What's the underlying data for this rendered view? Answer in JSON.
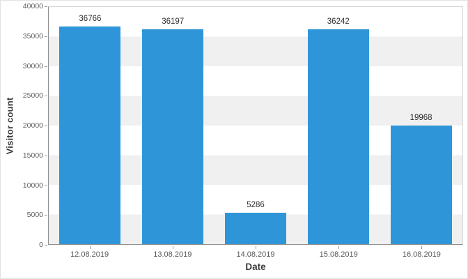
{
  "chart_data": {
    "type": "bar",
    "categories": [
      "12.08.2019",
      "13.08.2019",
      "14.08.2019",
      "15.08.2019",
      "16.08.2019"
    ],
    "values": [
      36766,
      36197,
      5286,
      36242,
      19968
    ],
    "title": "",
    "xlabel": "Date",
    "ylabel": "Visitor count",
    "ylim": [
      0,
      40000
    ],
    "yticks": [
      0,
      5000,
      10000,
      15000,
      20000,
      25000,
      30000,
      35000,
      40000
    ],
    "bar_color": "#2e96d8",
    "grid": true,
    "legend": "none",
    "background_stripes": [
      "#ffffff",
      "#f0f0f0"
    ]
  }
}
